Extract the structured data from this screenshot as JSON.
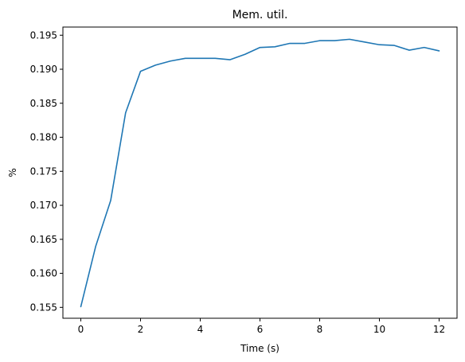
{
  "chart_data": {
    "type": "line",
    "title": "Mem. util.",
    "xlabel": "Time (s)",
    "ylabel": "%",
    "xlim": [
      -0.6,
      12.6
    ],
    "ylim": [
      0.1534,
      0.1962
    ],
    "x_ticks": [
      0,
      2,
      4,
      6,
      8,
      10,
      12
    ],
    "y_ticks": [
      0.155,
      0.16,
      0.165,
      0.17,
      0.175,
      0.18,
      0.185,
      0.19,
      0.195
    ],
    "y_tick_labels": [
      "0.155",
      "0.160",
      "0.165",
      "0.170",
      "0.175",
      "0.180",
      "0.185",
      "0.190",
      "0.195"
    ],
    "grid": false,
    "series": [
      {
        "color": "#1f77b4",
        "x": [
          0,
          0.5,
          1,
          1.5,
          2,
          2.5,
          3,
          3.5,
          4,
          4.5,
          5,
          5.5,
          6,
          6.5,
          7,
          7.5,
          8,
          8.5,
          9,
          9.5,
          10,
          10.5,
          11,
          11.5,
          12
        ],
        "y": [
          0.1551,
          0.164,
          0.1707,
          0.1836,
          0.1897,
          0.1906,
          0.1912,
          0.1916,
          0.1916,
          0.1916,
          0.1914,
          0.1922,
          0.1932,
          0.1933,
          0.1938,
          0.1938,
          0.1942,
          0.1942,
          0.1944,
          0.194,
          0.1936,
          0.1935,
          0.1928,
          0.1932,
          0.1927
        ]
      }
    ]
  }
}
